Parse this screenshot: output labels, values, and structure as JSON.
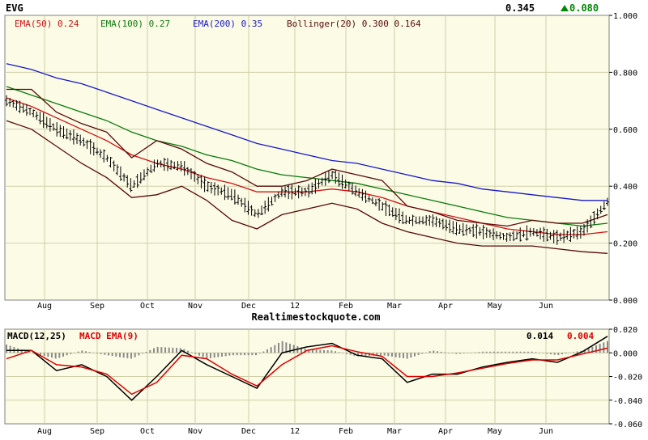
{
  "symbol": "EVG",
  "last_price": "0.345",
  "change": "0.080",
  "change_arrow": "up-triangle-icon",
  "watermark": "Realtimestockquote.com",
  "colors": {
    "background": "#fbfbe6",
    "grid": "#cfcfa8",
    "ema50": "#d01010",
    "ema100": "#0a7a0a",
    "ema200": "#1818c8",
    "bollinger": "#5a0a0a",
    "price_bars": "#000000",
    "up_change": "#008800",
    "macd": "#000000",
    "macd_signal": "#dd0000",
    "histogram": "#8a8a8a"
  },
  "main_legend": [
    {
      "label": "EMA(50)",
      "value": "0.24",
      "color": "#d01010"
    },
    {
      "label": "EMA(100)",
      "value": "0.27",
      "color": "#0a7a0a"
    },
    {
      "label": "EMA(200)",
      "value": "0.35",
      "color": "#1818c8"
    },
    {
      "label": "Bollinger(20)",
      "value": "0.300 0.164",
      "color": "#5a0a0a"
    }
  ],
  "x_labels": [
    "Aug",
    "Sep",
    "Oct",
    "Nov",
    "Dec",
    "12",
    "Feb",
    "Mar",
    "Apr",
    "May",
    "Jun"
  ],
  "main_y_labels": [
    "1.000",
    "0.800",
    "0.600",
    "0.400",
    "0.200",
    "0.000"
  ],
  "macd_legend": {
    "macd_label": "MACD(12,25)",
    "signal_label": "MACD EMA(9)",
    "macd_value": "0.014",
    "signal_value": "0.004"
  },
  "macd_y_labels": [
    "0.020",
    "0.000",
    "-0.020",
    "-0.040",
    "-0.060"
  ],
  "chart_data": [
    {
      "type": "line",
      "title": "EVG",
      "x": [
        "Jul-20",
        "Aug-01",
        "Aug-15",
        "Sep-01",
        "Sep-15",
        "Oct-01",
        "Oct-15",
        "Nov-01",
        "Nov-15",
        "Dec-01",
        "Dec-15",
        "Jan-01",
        "Jan-15",
        "Feb-01",
        "Feb-15",
        "Mar-01",
        "Mar-15",
        "Apr-01",
        "Apr-15",
        "May-01",
        "May-15",
        "Jun-01",
        "Jun-15",
        "Jul-01",
        "Jul-08"
      ],
      "ylim": [
        0,
        1
      ],
      "series": [
        {
          "name": "Price",
          "values": [
            0.7,
            0.66,
            0.6,
            0.56,
            0.5,
            0.4,
            0.48,
            0.47,
            0.4,
            0.37,
            0.3,
            0.38,
            0.38,
            0.44,
            0.38,
            0.33,
            0.28,
            0.28,
            0.25,
            0.24,
            0.22,
            0.24,
            0.22,
            0.24,
            0.345
          ]
        },
        {
          "name": "EMA(50)",
          "values": [
            0.71,
            0.68,
            0.64,
            0.6,
            0.56,
            0.51,
            0.48,
            0.46,
            0.43,
            0.41,
            0.38,
            0.38,
            0.38,
            0.39,
            0.38,
            0.36,
            0.33,
            0.31,
            0.29,
            0.27,
            0.25,
            0.24,
            0.23,
            0.23,
            0.24
          ]
        },
        {
          "name": "EMA(100)",
          "values": [
            0.75,
            0.72,
            0.69,
            0.66,
            0.63,
            0.59,
            0.56,
            0.54,
            0.51,
            0.49,
            0.46,
            0.44,
            0.43,
            0.42,
            0.41,
            0.39,
            0.37,
            0.35,
            0.33,
            0.31,
            0.29,
            0.28,
            0.27,
            0.26,
            0.27
          ]
        },
        {
          "name": "EMA(200)",
          "values": [
            0.83,
            0.81,
            0.78,
            0.76,
            0.73,
            0.7,
            0.67,
            0.64,
            0.61,
            0.58,
            0.55,
            0.53,
            0.51,
            0.49,
            0.48,
            0.46,
            0.44,
            0.42,
            0.41,
            0.39,
            0.38,
            0.37,
            0.36,
            0.35,
            0.35
          ]
        },
        {
          "name": "Bollinger Upper",
          "values": [
            0.74,
            0.74,
            0.66,
            0.62,
            0.59,
            0.5,
            0.56,
            0.53,
            0.48,
            0.45,
            0.4,
            0.4,
            0.42,
            0.46,
            0.44,
            0.42,
            0.33,
            0.31,
            0.28,
            0.27,
            0.26,
            0.28,
            0.27,
            0.27,
            0.3
          ]
        },
        {
          "name": "Bollinger Lower",
          "values": [
            0.63,
            0.6,
            0.54,
            0.48,
            0.43,
            0.36,
            0.37,
            0.4,
            0.35,
            0.28,
            0.25,
            0.3,
            0.32,
            0.34,
            0.32,
            0.27,
            0.24,
            0.22,
            0.2,
            0.19,
            0.19,
            0.19,
            0.18,
            0.17,
            0.164
          ]
        }
      ]
    },
    {
      "type": "line",
      "title": "MACD(12,25)",
      "x": [
        "Jul-20",
        "Aug-01",
        "Aug-15",
        "Sep-01",
        "Sep-15",
        "Oct-01",
        "Oct-15",
        "Nov-01",
        "Nov-15",
        "Dec-01",
        "Dec-15",
        "Jan-01",
        "Jan-15",
        "Feb-01",
        "Feb-15",
        "Mar-01",
        "Mar-15",
        "Apr-01",
        "Apr-15",
        "May-01",
        "May-15",
        "Jun-01",
        "Jun-15",
        "Jul-01",
        "Jul-08"
      ],
      "ylim": [
        -0.06,
        0.02
      ],
      "series": [
        {
          "name": "MACD",
          "values": [
            0.002,
            0.002,
            -0.015,
            -0.01,
            -0.02,
            -0.04,
            -0.02,
            0.002,
            -0.01,
            -0.02,
            -0.03,
            0.0,
            0.005,
            0.008,
            -0.002,
            -0.005,
            -0.025,
            -0.018,
            -0.018,
            -0.012,
            -0.008,
            -0.005,
            -0.008,
            0.001,
            0.014
          ]
        },
        {
          "name": "MACD EMA(9)",
          "values": [
            -0.005,
            0.002,
            -0.01,
            -0.012,
            -0.018,
            -0.035,
            -0.025,
            -0.002,
            -0.005,
            -0.018,
            -0.028,
            -0.01,
            0.002,
            0.006,
            0.001,
            -0.003,
            -0.02,
            -0.02,
            -0.017,
            -0.013,
            -0.009,
            -0.006,
            -0.006,
            -0.001,
            0.004
          ]
        }
      ]
    }
  ]
}
